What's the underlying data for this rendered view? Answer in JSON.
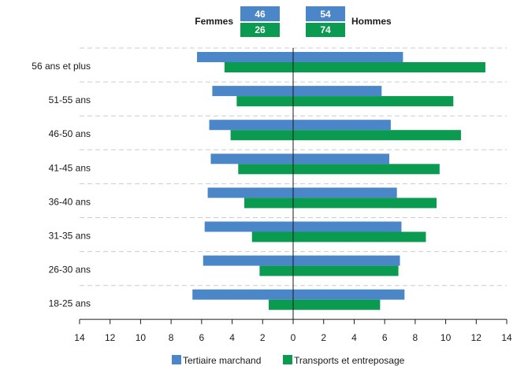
{
  "chart_data": {
    "type": "bar",
    "orientation": "horizontal",
    "layout": "population-pyramid",
    "categories": [
      "18-25 ans",
      "26-30 ans",
      "31-35 ans",
      "36-40 ans",
      "41-45 ans",
      "46-50 ans",
      "51-55 ans",
      "56 ans et plus"
    ],
    "sides": {
      "left": "Femmes",
      "right": "Hommes"
    },
    "series": [
      {
        "name": "Tertiaire marchand",
        "color": "#4a86c8",
        "femmes": [
          6.6,
          5.9,
          5.8,
          5.6,
          5.4,
          5.5,
          5.3,
          6.3
        ],
        "hommes": [
          7.3,
          7.0,
          7.1,
          6.8,
          6.3,
          6.4,
          5.8,
          7.2
        ],
        "total_femmes": "46",
        "total_hommes": "54"
      },
      {
        "name": "Transports et entreposage",
        "color": "#0a9a50",
        "femmes": [
          1.6,
          2.2,
          2.7,
          3.2,
          3.6,
          4.1,
          3.7,
          4.5
        ],
        "hommes": [
          5.7,
          6.9,
          8.7,
          9.4,
          9.6,
          11.0,
          10.5,
          12.6
        ],
        "total_femmes": "26",
        "total_hommes": "74"
      }
    ],
    "x_ticks": [
      "14",
      "12",
      "10",
      "8",
      "6",
      "4",
      "2",
      "0",
      "2",
      "4",
      "6",
      "8",
      "10",
      "12",
      "14"
    ],
    "xlim": [
      -14,
      14
    ],
    "grid": "horizontal-dashed",
    "legend_position": "bottom"
  }
}
